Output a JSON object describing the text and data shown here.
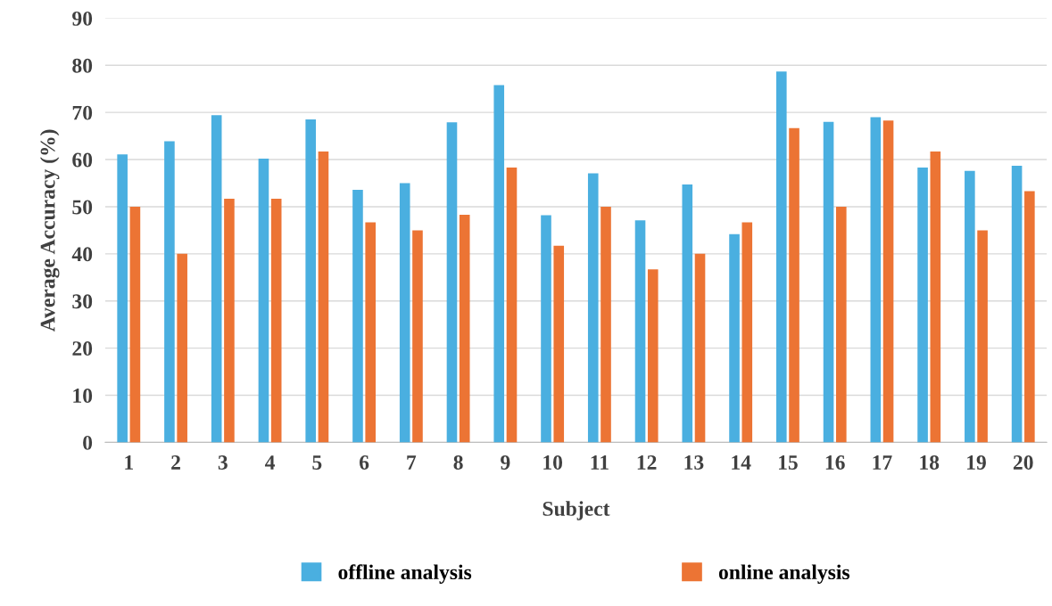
{
  "chart_data": {
    "type": "bar",
    "xlabel": "Subject",
    "ylabel": "Average Accuracy (%)",
    "categories": [
      "1",
      "2",
      "3",
      "4",
      "5",
      "6",
      "7",
      "8",
      "9",
      "10",
      "11",
      "12",
      "13",
      "14",
      "15",
      "16",
      "17",
      "18",
      "19",
      "20"
    ],
    "series": [
      {
        "name": "offline analysis",
        "color": "#4aafe0",
        "values": [
          61.1,
          63.9,
          69.4,
          60.2,
          68.5,
          53.6,
          55.0,
          67.9,
          75.8,
          48.2,
          57.1,
          47.1,
          54.7,
          44.2,
          78.7,
          68.0,
          69.0,
          58.3,
          57.6,
          58.7
        ]
      },
      {
        "name": "online analysis",
        "color": "#ec7434",
        "values": [
          50.0,
          40.0,
          51.7,
          51.7,
          61.7,
          46.7,
          45.0,
          48.3,
          58.3,
          41.7,
          50.0,
          36.7,
          40.0,
          46.7,
          66.7,
          50.0,
          68.3,
          61.7,
          45.0,
          53.3
        ]
      }
    ],
    "ylim": [
      0,
      90
    ],
    "yticks": [
      0,
      10,
      20,
      30,
      40,
      50,
      60,
      70,
      80,
      90
    ],
    "grid": "y",
    "legend": "bottom"
  }
}
